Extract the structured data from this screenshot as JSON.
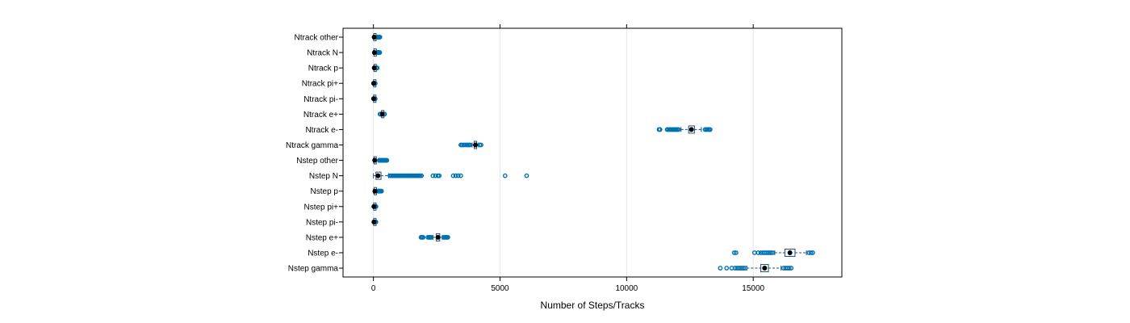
{
  "chart_data": {
    "type": "boxplot",
    "title": "",
    "xlabel": "Number of Steps/Tracks",
    "ylabel": "",
    "xlim": [
      -1200,
      18500
    ],
    "grid": true,
    "xticks": [
      0,
      5000,
      10000,
      15000
    ],
    "xtick_labels": [
      "0",
      "5000",
      "10000",
      "15000"
    ],
    "colors": {
      "box": "#1f4e79",
      "outlier": "#0072B2",
      "median": "#000000",
      "grid": "#e6e6e6",
      "frame": "#000000"
    },
    "categories": [
      "Ntrack other",
      "Ntrack N",
      "Ntrack p",
      "Ntrack pi+",
      "Ntrack pi-",
      "Ntrack e+",
      "Ntrack e-",
      "Ntrack gamma",
      "Nstep other",
      "Nstep N",
      "Nstep p",
      "Nstep pi+",
      "Nstep pi-",
      "Nstep e+",
      "Nstep e-",
      "Nstep gamma"
    ],
    "boxes": [
      {
        "name": "Ntrack other",
        "q1": 10,
        "median": 30,
        "q3": 60,
        "whisker_low": 0,
        "whisker_high": 120,
        "outliers": [
          140,
          160,
          180,
          200,
          220,
          240,
          260
        ]
      },
      {
        "name": "Ntrack N",
        "q1": 20,
        "median": 40,
        "q3": 70,
        "whisker_low": 0,
        "whisker_high": 130,
        "outliers": [
          150,
          170,
          190,
          210,
          230,
          250
        ]
      },
      {
        "name": "Ntrack p",
        "q1": 20,
        "median": 35,
        "q3": 55,
        "whisker_low": 0,
        "whisker_high": 100,
        "outliers": [
          110,
          130,
          150
        ]
      },
      {
        "name": "Ntrack pi+",
        "q1": 5,
        "median": 10,
        "q3": 15,
        "whisker_low": 0,
        "whisker_high": 30,
        "outliers": [
          40,
          50,
          60,
          70
        ]
      },
      {
        "name": "Ntrack pi-",
        "q1": 5,
        "median": 10,
        "q3": 15,
        "whisker_low": 0,
        "whisker_high": 30,
        "outliers": [
          40,
          50,
          60,
          70
        ]
      },
      {
        "name": "Ntrack e+",
        "q1": 320,
        "median": 350,
        "q3": 380,
        "whisker_low": 290,
        "whisker_high": 410,
        "outliers": [
          260,
          270,
          280,
          420,
          430,
          440
        ]
      },
      {
        "name": "Ntrack e-",
        "q1": 12450,
        "median": 12560,
        "q3": 12680,
        "whisker_low": 12150,
        "whisker_high": 12950,
        "outliers": [
          11280,
          11320,
          11600,
          11650,
          11700,
          11750,
          11800,
          11850,
          11900,
          11950,
          12000,
          12050,
          13100,
          13150,
          13200,
          13250,
          13300
        ]
      },
      {
        "name": "Ntrack gamma",
        "q1": 3980,
        "median": 4030,
        "q3": 4080,
        "whisker_low": 3900,
        "whisker_high": 4150,
        "outliers": [
          3450,
          3500,
          3560,
          3620,
          3680,
          3730,
          3780,
          3820,
          4200,
          4250
        ]
      },
      {
        "name": "Nstep other",
        "q1": 20,
        "median": 50,
        "q3": 100,
        "whisker_low": 0,
        "whisker_high": 200,
        "outliers": [
          230,
          260,
          290,
          320,
          350,
          380,
          410,
          440,
          470,
          500,
          530
        ]
      },
      {
        "name": "Nstep N",
        "q1": 100,
        "median": 180,
        "q3": 300,
        "whisker_low": 0,
        "whisker_high": 600,
        "outliers": [
          650,
          700,
          750,
          800,
          850,
          900,
          950,
          1000,
          1050,
          1100,
          1150,
          1200,
          1250,
          1300,
          1350,
          1400,
          1450,
          1500,
          1550,
          1600,
          1650,
          1700,
          1750,
          1800,
          1850,
          1900,
          2350,
          2450,
          2550,
          2600,
          3150,
          3250,
          3350,
          3450,
          5200,
          6050
        ]
      },
      {
        "name": "Nstep p",
        "q1": 30,
        "median": 60,
        "q3": 100,
        "whisker_low": 0,
        "whisker_high": 180,
        "outliers": [
          200,
          220,
          240,
          260,
          280,
          300,
          320
        ]
      },
      {
        "name": "Nstep pi+",
        "q1": 10,
        "median": 20,
        "q3": 30,
        "whisker_low": 0,
        "whisker_high": 60,
        "outliers": [
          70,
          80,
          90,
          100
        ]
      },
      {
        "name": "Nstep pi-",
        "q1": 10,
        "median": 20,
        "q3": 30,
        "whisker_low": 0,
        "whisker_high": 60,
        "outliers": [
          70,
          80,
          90,
          100
        ]
      },
      {
        "name": "Nstep e+",
        "q1": 2480,
        "median": 2550,
        "q3": 2620,
        "whisker_low": 2350,
        "whisker_high": 2720,
        "outliers": [
          1880,
          1920,
          1960,
          2150,
          2200,
          2230,
          2260,
          2290,
          2780,
          2820,
          2860,
          2900,
          2940
        ]
      },
      {
        "name": "Nstep e-",
        "q1": 16250,
        "median": 16450,
        "q3": 16650,
        "whisker_low": 15850,
        "whisker_high": 17100,
        "outliers": [
          14250,
          14320,
          15050,
          15200,
          15300,
          15380,
          15450,
          15520,
          15580,
          15640,
          15700,
          15760,
          17200,
          17280,
          17350
        ]
      },
      {
        "name": "Nstep gamma",
        "q1": 15300,
        "median": 15450,
        "q3": 15600,
        "whisker_low": 14750,
        "whisker_high": 16100,
        "outliers": [
          13700,
          13950,
          14150,
          14280,
          14360,
          14430,
          14490,
          14550,
          14610,
          14680,
          16200,
          16280,
          16350,
          16420,
          16500
        ]
      }
    ]
  }
}
